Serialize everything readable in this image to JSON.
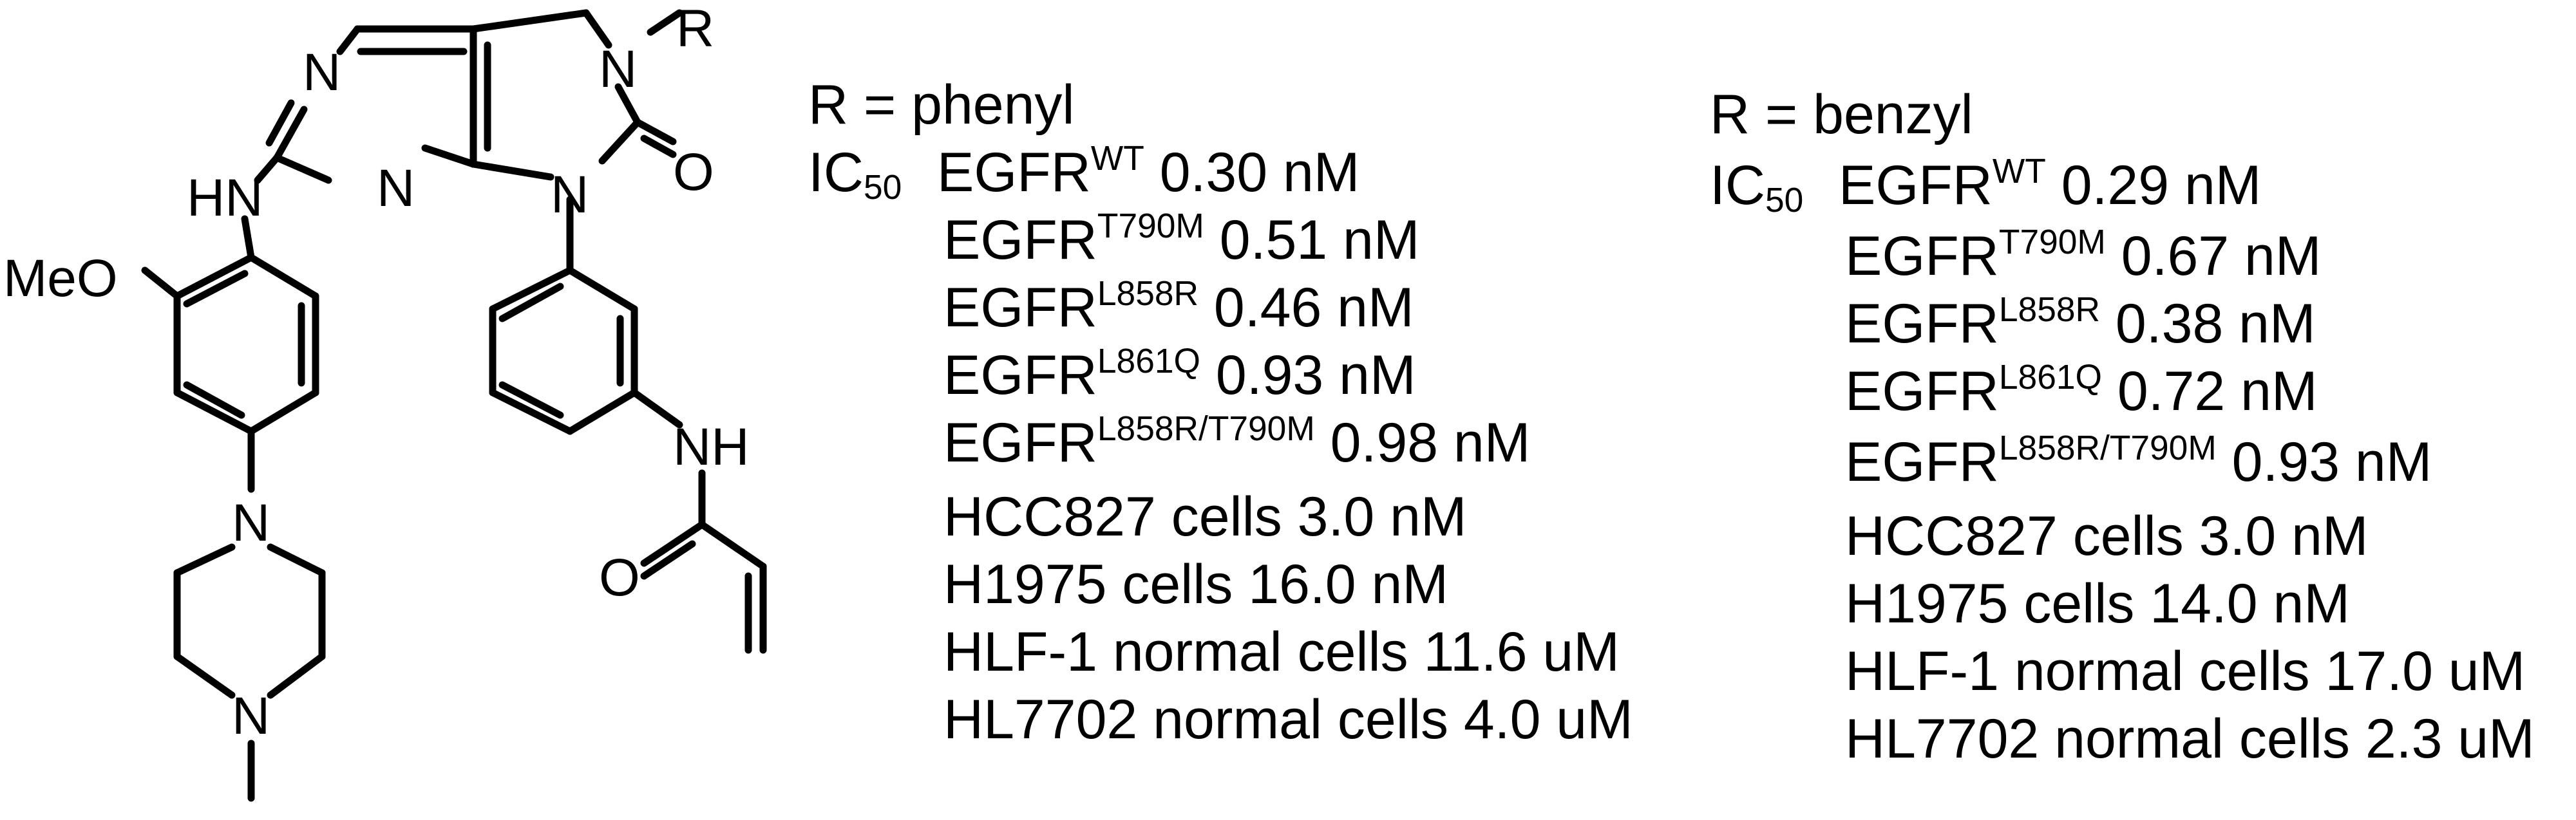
{
  "structure": {
    "atoms": {
      "r": "R",
      "n_ring_top": "N",
      "n_ring_mid": "N",
      "n_amide": "N",
      "n_aryl": "N",
      "o_carbonyl": "O",
      "hn": "HN",
      "meo": "MeO",
      "nh": "NH",
      "o_acryl": "O",
      "n_pip_top": "N",
      "n_pip_bottom": "N"
    }
  },
  "columns": [
    {
      "r_line": "R = phenyl",
      "ic50_prefix": "IC",
      "ic50_sub": "50",
      "rows": [
        {
          "pre": "EGFR",
          "sup": "WT",
          "post": " 0.30 nM"
        },
        {
          "pre": "EGFR",
          "sup": "T790M",
          "post": " 0.51 nM"
        },
        {
          "pre": "EGFR",
          "sup": "L858R",
          "post": " 0.46 nM"
        },
        {
          "pre": "EGFR",
          "sup": "L861Q",
          "post": " 0.93 nM"
        },
        {
          "pre": "EGFR",
          "sup": "L858R/T790M",
          "post": " 0.98 nM"
        },
        {
          "pre": "HCC827 cells 3.0 nM",
          "sup": "",
          "post": ""
        },
        {
          "pre": "H1975 cells 16.0 nM",
          "sup": "",
          "post": ""
        },
        {
          "pre": "HLF-1 normal cells 11.6 uM",
          "sup": "",
          "post": ""
        },
        {
          "pre": "HL7702 normal cells 4.0 uM",
          "sup": "",
          "post": ""
        }
      ]
    },
    {
      "r_line": "R = benzyl",
      "ic50_prefix": "IC",
      "ic50_sub": "50",
      "rows": [
        {
          "pre": "EGFR",
          "sup": "WT",
          "post": " 0.29 nM"
        },
        {
          "pre": "EGFR",
          "sup": "T790M",
          "post": " 0.67 nM"
        },
        {
          "pre": "EGFR",
          "sup": "L858R",
          "post": " 0.38 nM"
        },
        {
          "pre": "EGFR",
          "sup": "L861Q",
          "post": " 0.72 nM"
        },
        {
          "pre": "EGFR",
          "sup": "L858R/T790M",
          "post": " 0.93 nM"
        },
        {
          "pre": "HCC827 cells 3.0 nM",
          "sup": "",
          "post": ""
        },
        {
          "pre": "H1975 cells 14.0 nM",
          "sup": "",
          "post": ""
        },
        {
          "pre": "HLF-1 normal cells 17.0 uM",
          "sup": "",
          "post": ""
        },
        {
          "pre": "HL7702 normal cells 2.3 uM",
          "sup": "",
          "post": ""
        }
      ]
    }
  ]
}
